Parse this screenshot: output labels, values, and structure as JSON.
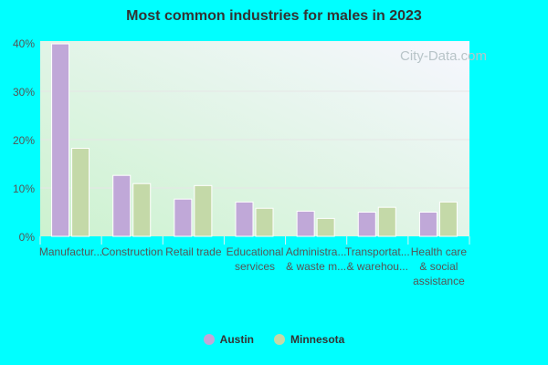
{
  "chart_data": {
    "type": "bar",
    "title": "Most common industries for males in 2023",
    "categories": [
      "Manufactur...",
      "Construction",
      "Retail trade",
      "Educational services",
      "Administra... & waste m...",
      "Transportat... & warehou...",
      "Health care & social assistance"
    ],
    "category_lines": [
      [
        "Manufactur..."
      ],
      [
        "Construction"
      ],
      [
        "Retail trade"
      ],
      [
        "Educational",
        "services"
      ],
      [
        "Administra...",
        "& waste m..."
      ],
      [
        "Transportat...",
        "& warehou..."
      ],
      [
        "Health care",
        "& social",
        "assistance"
      ]
    ],
    "series": [
      {
        "name": "Austin",
        "color": "#c0a8d8",
        "values": [
          39.8,
          12.6,
          7.7,
          7.1,
          5.2,
          5.0,
          5.0
        ]
      },
      {
        "name": "Minnesota",
        "color": "#c4d9a8",
        "values": [
          18.2,
          10.9,
          10.5,
          5.8,
          3.7,
          6.0,
          7.1
        ]
      }
    ],
    "ylim": [
      0,
      40
    ],
    "yticks": [
      "0%",
      "10%",
      "20%",
      "30%",
      "40%"
    ],
    "grid": true,
    "legend": "bottom",
    "watermark": "City-Data.com"
  }
}
